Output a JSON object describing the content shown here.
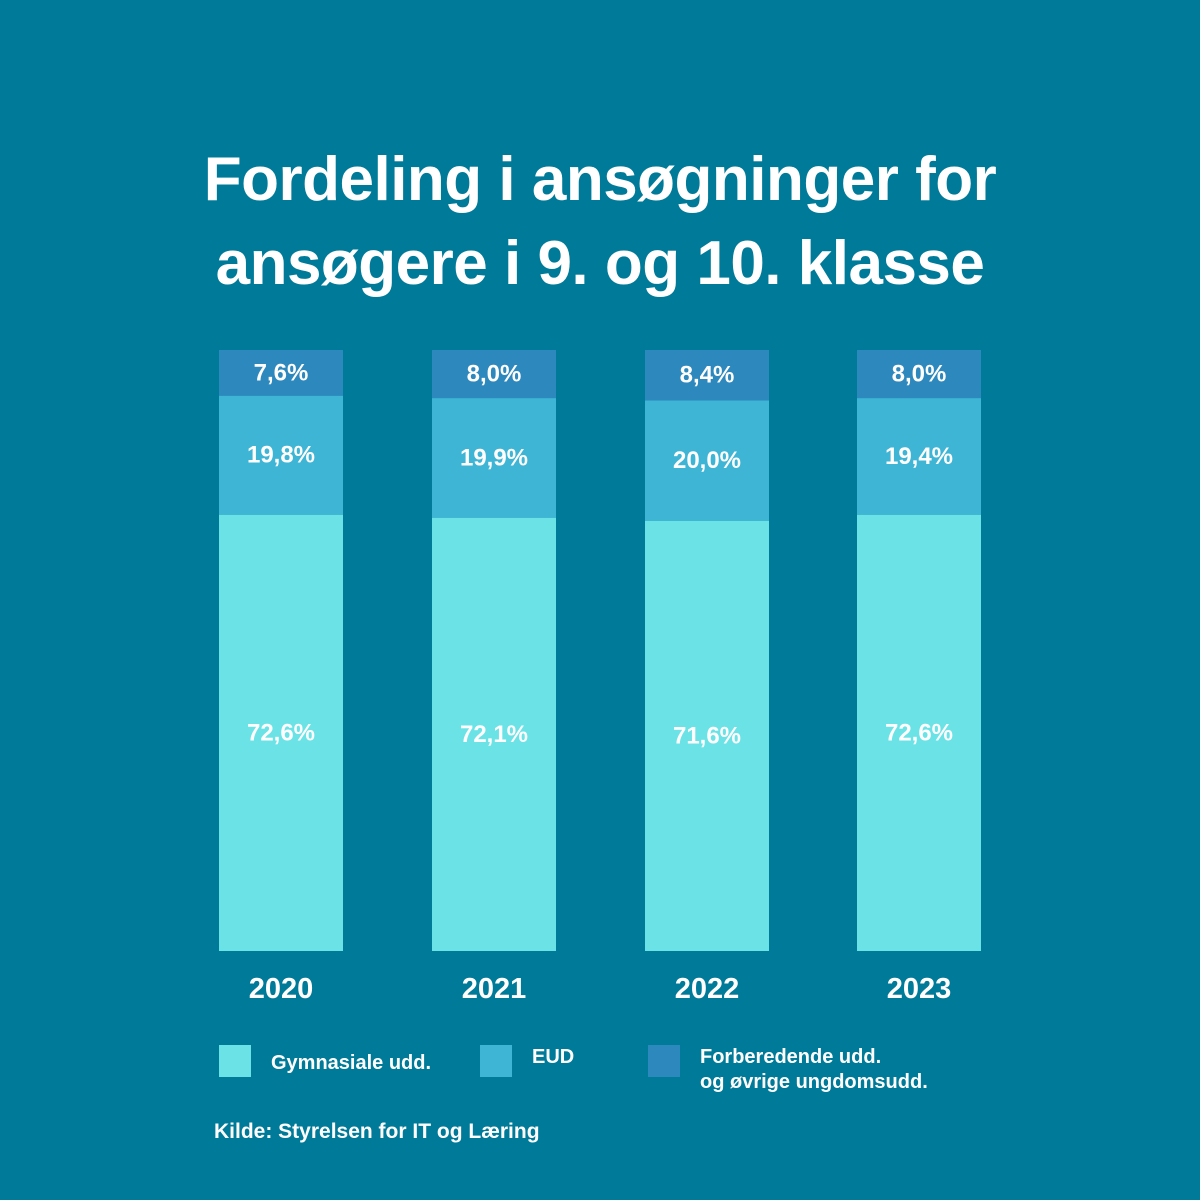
{
  "chart_data": {
    "type": "bar",
    "stacked": true,
    "title": [
      "Fordeling i ansøgninger for",
      "ansøgere i 9. og 10. klasse"
    ],
    "categories": [
      "2020",
      "2021",
      "2022",
      "2023"
    ],
    "series": [
      {
        "name": "Gymnasiale udd.",
        "color": "#6be3e6",
        "values": [
          72.6,
          72.1,
          71.6,
          72.6
        ],
        "labels": [
          "72,6%",
          "72,1%",
          "71,6%",
          "72,6%"
        ]
      },
      {
        "name": "EUD",
        "color": "#3fb5d6",
        "values": [
          19.8,
          19.9,
          20.0,
          19.4
        ],
        "labels": [
          "19,8%",
          "19,9%",
          "20,0%",
          "19,4%"
        ]
      },
      {
        "name": "Forberedende udd. og øvrige ungdomsudd.",
        "color": "#2d88bd",
        "values": [
          7.6,
          8.0,
          8.4,
          8.0
        ],
        "labels": [
          "7,6%",
          "8,0%",
          "8,4%",
          "8,0%"
        ]
      }
    ],
    "ylim": [
      0,
      100
    ],
    "grid": false,
    "legend": "bottom"
  },
  "legend": {
    "items": [
      {
        "lines": [
          "Gymnasiale udd."
        ],
        "color": "#6be3e6"
      },
      {
        "lines": [
          "EUD"
        ],
        "color": "#3fb5d6"
      },
      {
        "lines": [
          "Forberedende udd.",
          "og øvrige ungdomsudd."
        ],
        "color": "#2d88bd"
      }
    ]
  },
  "source": "Kilde: Styrelsen for IT og Læring"
}
